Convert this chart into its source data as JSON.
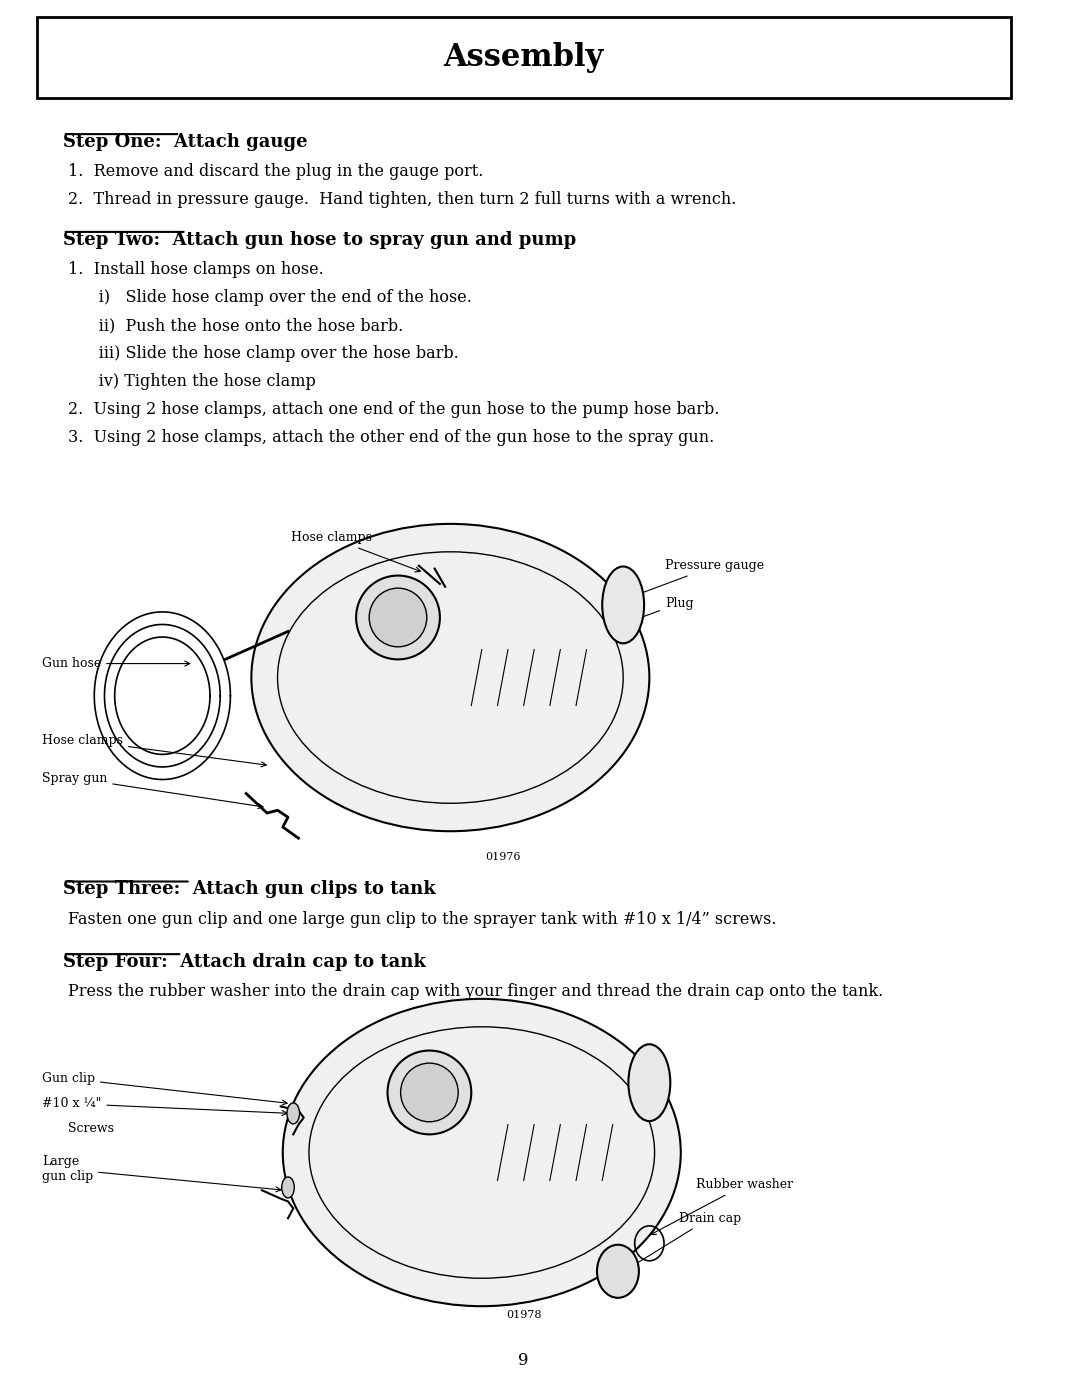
{
  "bg_color": "#ffffff",
  "title": "Assembly",
  "title_fontsize": 22,
  "title_font": "serif",
  "body_fontsize": 11.5,
  "body_font": "serif",
  "step_fontsize": 13,
  "page_number": "9",
  "step1_heading": "Step One:  Attach gauge",
  "step1_lines": [
    "1.  Remove and discard the plug in the gauge port.",
    "2.  Thread in pressure gauge.  Hand tighten, then turn 2 full turns with a wrench."
  ],
  "step2_heading": "Step Two:  Attach gun hose to spray gun and pump",
  "step2_lines": [
    "1.  Install hose clamps on hose.",
    "      i)   Slide hose clamp over the end of the hose.",
    "      ii)  Push the hose onto the hose barb.",
    "      iii) Slide the hose clamp over the hose barb.",
    "      iv) Tighten the hose clamp",
    "2.  Using 2 hose clamps, attach one end of the gun hose to the pump hose barb.",
    "3.  Using 2 hose clamps, attach the other end of the gun hose to the spray gun."
  ],
  "diagram1_code": "01976",
  "step3_heading": "Step Three:  Attach gun clips to tank",
  "step3_line": "Fasten one gun clip and one large gun clip to the sprayer tank with #10 x 1/4” screws.",
  "step4_heading": "Step Four:  Attach drain cap to tank",
  "step4_line": "Press the rubber washer into the drain cap with your finger and thread the drain cap onto the tank.",
  "diagram2_code": "01978"
}
